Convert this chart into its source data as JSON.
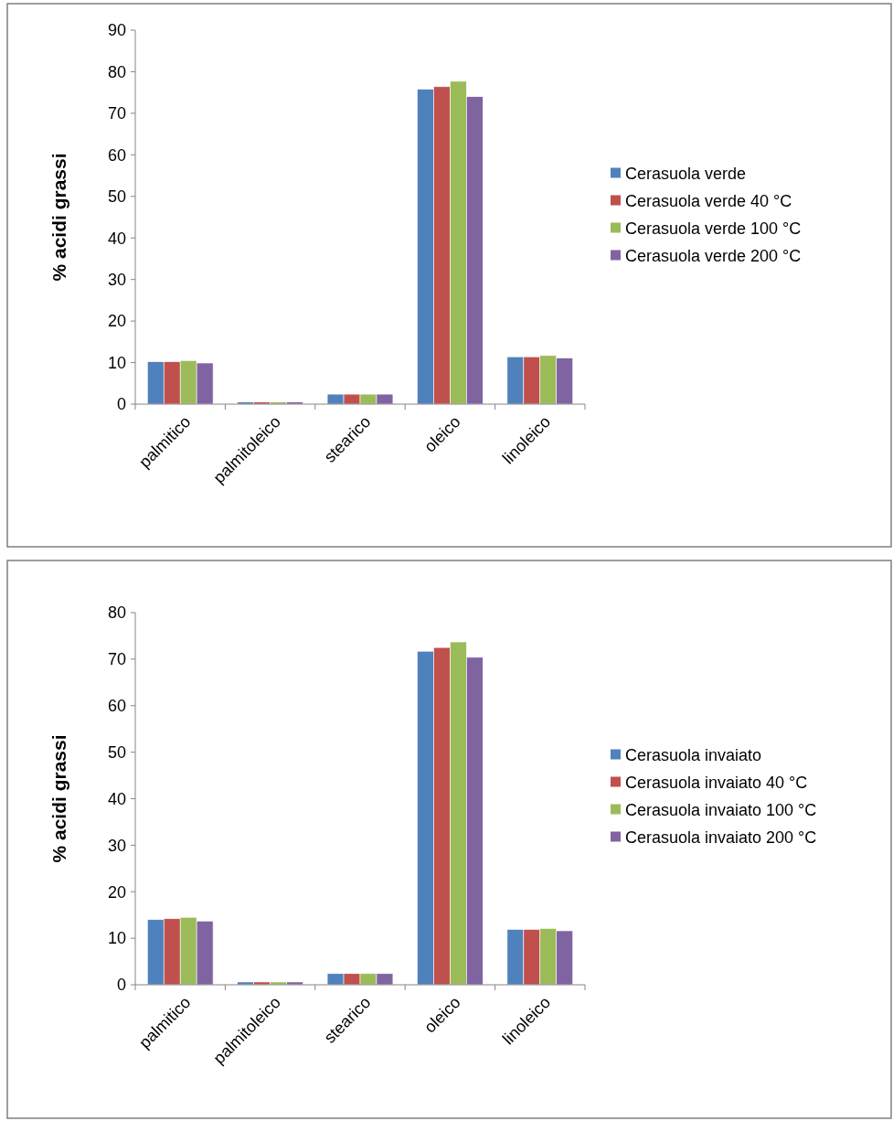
{
  "chart_data": [
    {
      "type": "bar",
      "ylabel": "% acidi grassi",
      "categories": [
        "palmitico",
        "palmitoleico",
        "stearico",
        "oleico",
        "linoleico"
      ],
      "ylim": [
        0,
        90
      ],
      "yticks": [
        0,
        10,
        20,
        30,
        40,
        50,
        60,
        70,
        80,
        90
      ],
      "legend": "right",
      "series": [
        {
          "name": "Cerasuola verde",
          "color": "#4f81bd",
          "values": [
            10.2,
            0.5,
            2.4,
            75.8,
            11.4
          ]
        },
        {
          "name": "Cerasuola verde 40 °C",
          "color": "#c0504d",
          "values": [
            10.2,
            0.5,
            2.4,
            76.4,
            11.4
          ]
        },
        {
          "name": "Cerasuola verde 100 °C",
          "color": "#9bbb59",
          "values": [
            10.5,
            0.5,
            2.4,
            77.7,
            11.7
          ]
        },
        {
          "name": "Cerasuola verde 200 °C",
          "color": "#8064a2",
          "values": [
            9.9,
            0.5,
            2.4,
            74.0,
            11.1
          ]
        }
      ]
    },
    {
      "type": "bar",
      "ylabel": "% acidi grassi",
      "categories": [
        "palmitico",
        "palmitoleico",
        "stearico",
        "oleico",
        "linoleico"
      ],
      "ylim": [
        0,
        80
      ],
      "yticks": [
        0,
        10,
        20,
        30,
        40,
        50,
        60,
        70,
        80
      ],
      "legend": "right",
      "series": [
        {
          "name": "Cerasuola invaiato",
          "color": "#4f81bd",
          "values": [
            14.0,
            0.6,
            2.4,
            71.7,
            11.9
          ]
        },
        {
          "name": "Cerasuola invaiato 40 °C",
          "color": "#c0504d",
          "values": [
            14.2,
            0.6,
            2.4,
            72.5,
            11.9
          ]
        },
        {
          "name": "Cerasuola invaiato 100 °C",
          "color": "#9bbb59",
          "values": [
            14.5,
            0.6,
            2.4,
            73.7,
            12.1
          ]
        },
        {
          "name": "Cerasuola invaiato 200 °C",
          "color": "#8064a2",
          "values": [
            13.7,
            0.6,
            2.4,
            70.4,
            11.6
          ]
        }
      ]
    }
  ]
}
